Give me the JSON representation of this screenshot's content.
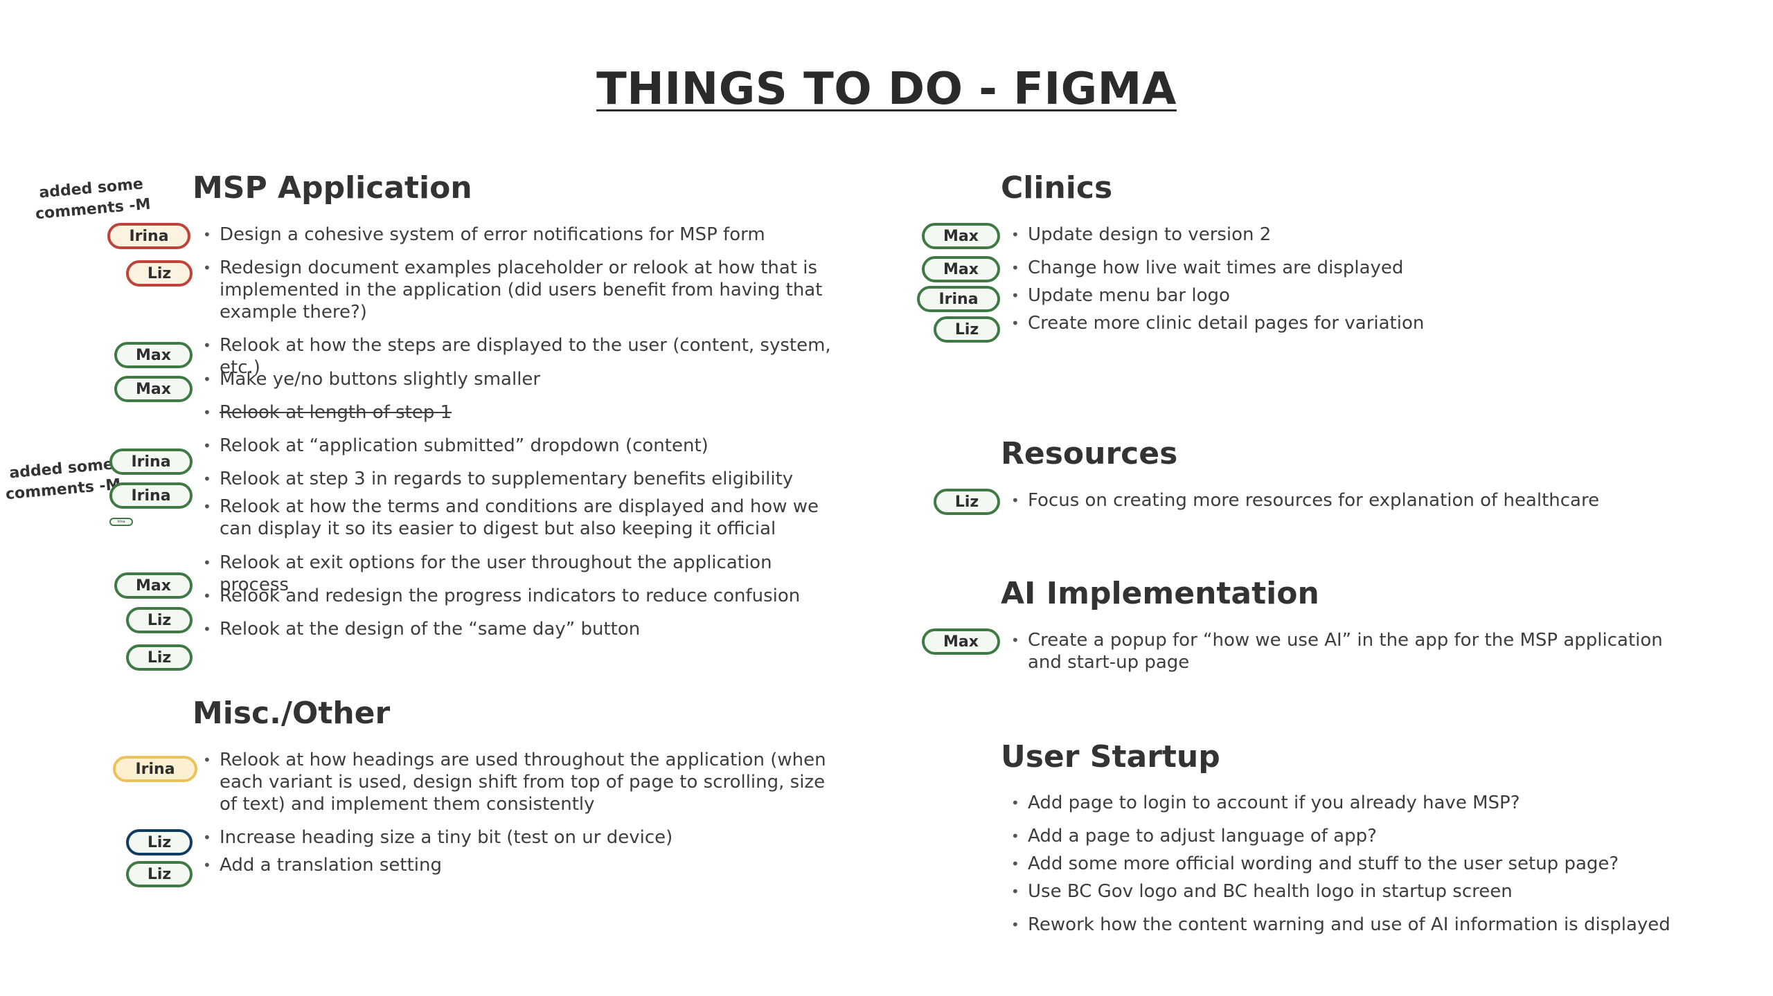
{
  "title": "THINGS TO DO - FIGMA",
  "notes": [
    "added some comments -M",
    "added some comments -M"
  ],
  "sections": {
    "msp": {
      "heading": "MSP Application",
      "items": [
        "Design a cohesive system of error notifications for MSP form",
        "Redesign document examples placeholder or relook at how that is implemented in the application (did users benefit from having that example there?)",
        "Relook at how the steps are displayed to the user (content, system, etc.)",
        "Make ye/no buttons slightly smaller",
        "Relook at length of step 1",
        "Relook at “application submitted” dropdown (content)",
        "Relook at step 3 in regards to supplementary benefits eligibility",
        "Relook at how the terms and conditions are displayed and how we can display it so its easier to digest but also keeping it official",
        "Relook at exit options for the user throughout the application process",
        "Relook and redesign the progress indicators to reduce confusion",
        "Relook at the design of the “same day” button"
      ],
      "tags": [
        "Irina",
        "Liz",
        "Max",
        "Max",
        "Irina",
        "Irina",
        "Irina",
        "Max",
        "Liz",
        "Liz"
      ]
    },
    "misc": {
      "heading": "Misc./Other",
      "items": [
        "Relook at how headings are used throughout the application (when each variant is used, design shift from top of page to scrolling, size of text) and implement them consistently",
        "Increase heading size a tiny bit (test on ur device)",
        "Add a translation setting"
      ],
      "tags": [
        "Irina",
        "Liz",
        "Liz"
      ]
    },
    "clinics": {
      "heading": "Clinics",
      "items": [
        "Update design to version 2",
        "Change how live wait times are displayed",
        "Update menu bar logo",
        "Create more clinic detail pages for variation"
      ],
      "tags": [
        "Max",
        "Max",
        "Irina",
        "Liz"
      ]
    },
    "resources": {
      "heading": "Resources",
      "items": [
        "Focus on creating more resources for explanation of healthcare"
      ],
      "tags": [
        "Liz"
      ]
    },
    "ai": {
      "heading": "AI Implementation",
      "items": [
        "Create a popup for “how we use AI” in the app for the MSP application and start-up page"
      ],
      "tags": [
        "Max"
      ]
    },
    "startup": {
      "heading": "User Startup",
      "items": [
        "Add page to login to account if you already have MSP?",
        "Add a page to adjust language of app?",
        "Add some more official wording and stuff to the user setup page?",
        "Use BC Gov logo and BC health logo in startup screen",
        "Rework how the content warning and use of AI information is displayed"
      ]
    }
  },
  "colors": {
    "tag_green": "#3f7a45",
    "tag_red": "#c0433a",
    "tag_yellow": "#ecc25a",
    "tag_navy": "#123b63",
    "text": "#3a3a3a"
  }
}
